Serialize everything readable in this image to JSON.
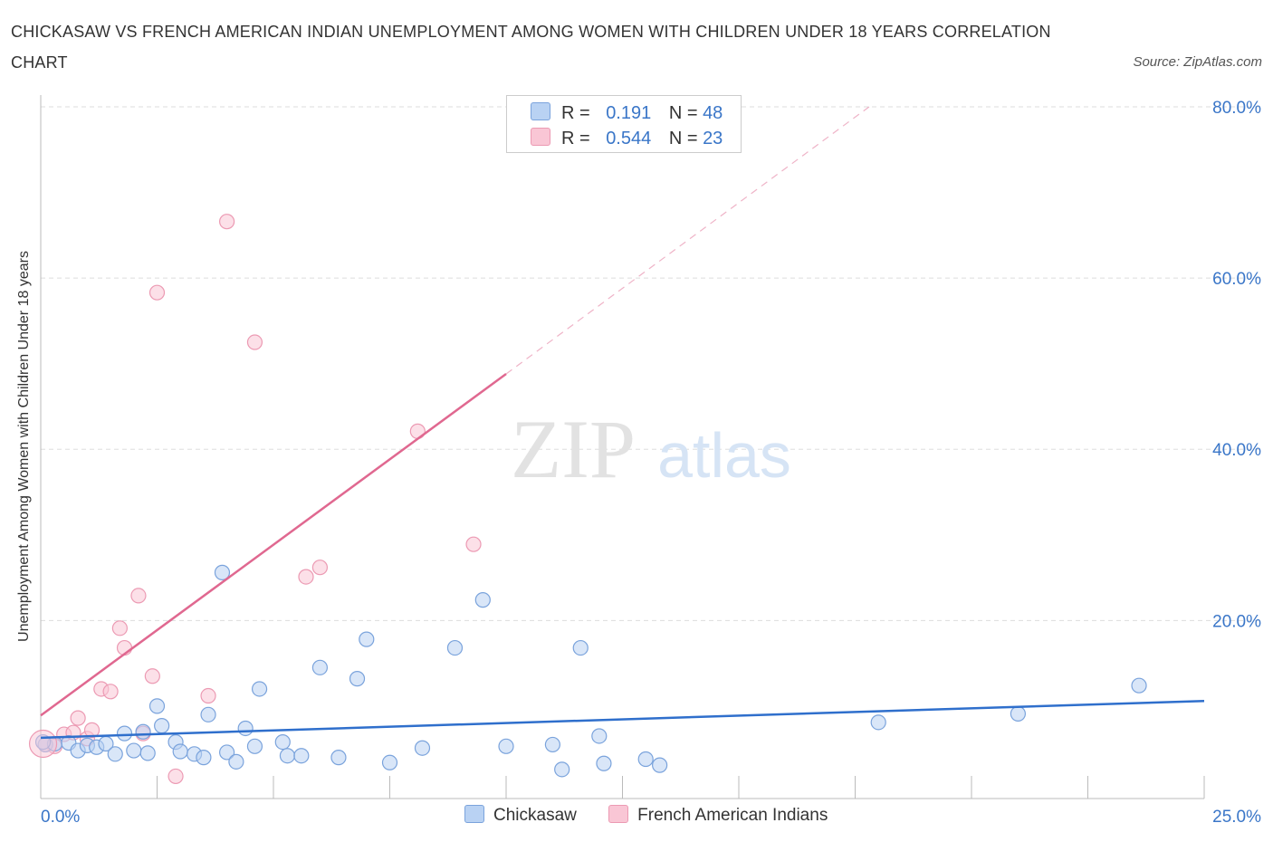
{
  "header": {
    "title": "CHICKASAW VS FRENCH AMERICAN INDIAN UNEMPLOYMENT AMONG WOMEN WITH CHILDREN UNDER 18 YEARS CORRELATION CHART",
    "source": "Source: ZipAtlas.com"
  },
  "watermark": {
    "zip": "ZIP",
    "atlas": "atlas"
  },
  "legend": {
    "chickasaw": {
      "r_label": "R =",
      "r_value": "0.191",
      "n_label": "N =",
      "n_value": "48"
    },
    "french": {
      "r_label": "R =",
      "r_value": "0.544",
      "n_label": "N =",
      "n_value": "23"
    }
  },
  "bottom_legend": {
    "chickasaw": "Chickasaw",
    "french": "French American Indians"
  },
  "colors": {
    "chickasaw_fill": "#b9d2f3",
    "chickasaw_stroke": "#7aa3dc",
    "chickasaw_line": "#2f6fcc",
    "french_fill": "#f9c6d5",
    "french_stroke": "#ec9ab3",
    "french_line": "#e06890",
    "axis_label": "#3a76c8",
    "grid": "#dddddd"
  },
  "chart_data": {
    "type": "scatter",
    "title": "CHICKASAW VS FRENCH AMERICAN INDIAN UNEMPLOYMENT AMONG WOMEN WITH CHILDREN UNDER 18 YEARS CORRELATION CHART",
    "xlabel": "",
    "ylabel": "Unemployment Among Women with Children Under 18 years",
    "xlim": [
      0,
      25
    ],
    "ylim": [
      -0.8,
      80
    ],
    "x_tick_labels": [
      "0.0%",
      "25.0%"
    ],
    "y_ticks": [
      20,
      40,
      60,
      80
    ],
    "y_tick_labels": [
      "20.0%",
      "40.0%",
      "60.0%",
      "80.0%"
    ],
    "grid": true,
    "series": [
      {
        "name": "Chickasaw",
        "r": 0.191,
        "n": 48,
        "points": [
          [
            0.1,
            5.5
          ],
          [
            0.3,
            5.6
          ],
          [
            0.6,
            5.7
          ],
          [
            0.8,
            4.8
          ],
          [
            1.0,
            5.4
          ],
          [
            1.2,
            5.2
          ],
          [
            1.4,
            5.6
          ],
          [
            1.6,
            4.4
          ],
          [
            1.8,
            6.8
          ],
          [
            2.0,
            4.8
          ],
          [
            2.2,
            7.0
          ],
          [
            2.3,
            4.5
          ],
          [
            2.5,
            10.0
          ],
          [
            2.6,
            7.7
          ],
          [
            2.9,
            5.8
          ],
          [
            3.0,
            4.7
          ],
          [
            3.3,
            4.4
          ],
          [
            3.5,
            4.0
          ],
          [
            3.6,
            9.0
          ],
          [
            3.9,
            25.6
          ],
          [
            4.0,
            4.6
          ],
          [
            4.2,
            3.5
          ],
          [
            4.4,
            7.4
          ],
          [
            4.6,
            5.3
          ],
          [
            4.7,
            12.0
          ],
          [
            5.2,
            5.8
          ],
          [
            5.3,
            4.2
          ],
          [
            5.6,
            4.2
          ],
          [
            6.0,
            14.5
          ],
          [
            6.4,
            4.0
          ],
          [
            6.8,
            13.2
          ],
          [
            7.0,
            17.8
          ],
          [
            7.5,
            3.4
          ],
          [
            8.2,
            5.1
          ],
          [
            8.9,
            16.8
          ],
          [
            9.5,
            22.4
          ],
          [
            10.0,
            5.3
          ],
          [
            11.0,
            5.5
          ],
          [
            11.2,
            2.6
          ],
          [
            11.6,
            16.8
          ],
          [
            12.0,
            6.5
          ],
          [
            12.1,
            3.3
          ],
          [
            13.0,
            3.8
          ],
          [
            13.3,
            3.1
          ],
          [
            18.0,
            8.1
          ],
          [
            21.0,
            9.1
          ],
          [
            23.6,
            12.4
          ],
          [
            0.05,
            5.8
          ]
        ],
        "trend": {
          "x": [
            0,
            25
          ],
          "y": [
            6.3,
            10.6
          ]
        }
      },
      {
        "name": "French American Indians",
        "r": 0.544,
        "n": 23,
        "points": [
          [
            0.1,
            5.5
          ],
          [
            0.3,
            5.3
          ],
          [
            0.5,
            6.7
          ],
          [
            0.7,
            6.9
          ],
          [
            0.8,
            8.6
          ],
          [
            1.0,
            6.2
          ],
          [
            1.1,
            7.2
          ],
          [
            1.3,
            12.0
          ],
          [
            1.5,
            11.7
          ],
          [
            1.7,
            19.1
          ],
          [
            1.8,
            16.8
          ],
          [
            2.1,
            22.9
          ],
          [
            2.2,
            6.8
          ],
          [
            2.4,
            13.5
          ],
          [
            2.5,
            58.3
          ],
          [
            2.9,
            1.8
          ],
          [
            3.6,
            11.2
          ],
          [
            4.0,
            66.6
          ],
          [
            4.6,
            52.5
          ],
          [
            5.7,
            25.1
          ],
          [
            6.0,
            26.2
          ],
          [
            8.1,
            42.1
          ],
          [
            9.3,
            28.9
          ]
        ],
        "trend": {
          "x": [
            0,
            10
          ],
          "y": [
            8.9,
            48.8
          ]
        },
        "trend_extension": {
          "x": [
            10,
            17.8
          ],
          "y": [
            48.8,
            80
          ]
        }
      }
    ]
  }
}
